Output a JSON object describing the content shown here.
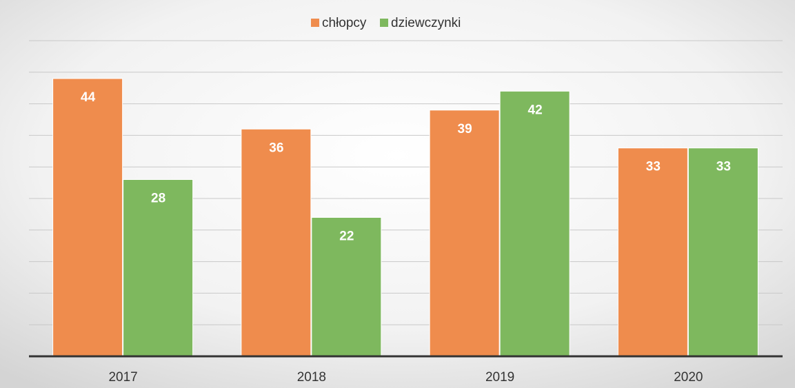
{
  "chart_data": {
    "type": "bar",
    "categories": [
      "2017",
      "2018",
      "2019",
      "2020"
    ],
    "series": [
      {
        "name": "chłopcy",
        "color": "#ef8c4d",
        "values": [
          44,
          36,
          39,
          33
        ]
      },
      {
        "name": "dziewczynki",
        "color": "#7eb85e",
        "values": [
          28,
          22,
          42,
          33
        ]
      }
    ],
    "ylim": [
      0,
      50
    ],
    "yticks": [
      0,
      5,
      10,
      15,
      20,
      25,
      30,
      35,
      40,
      45,
      50
    ],
    "grid": true,
    "legend": "top"
  }
}
